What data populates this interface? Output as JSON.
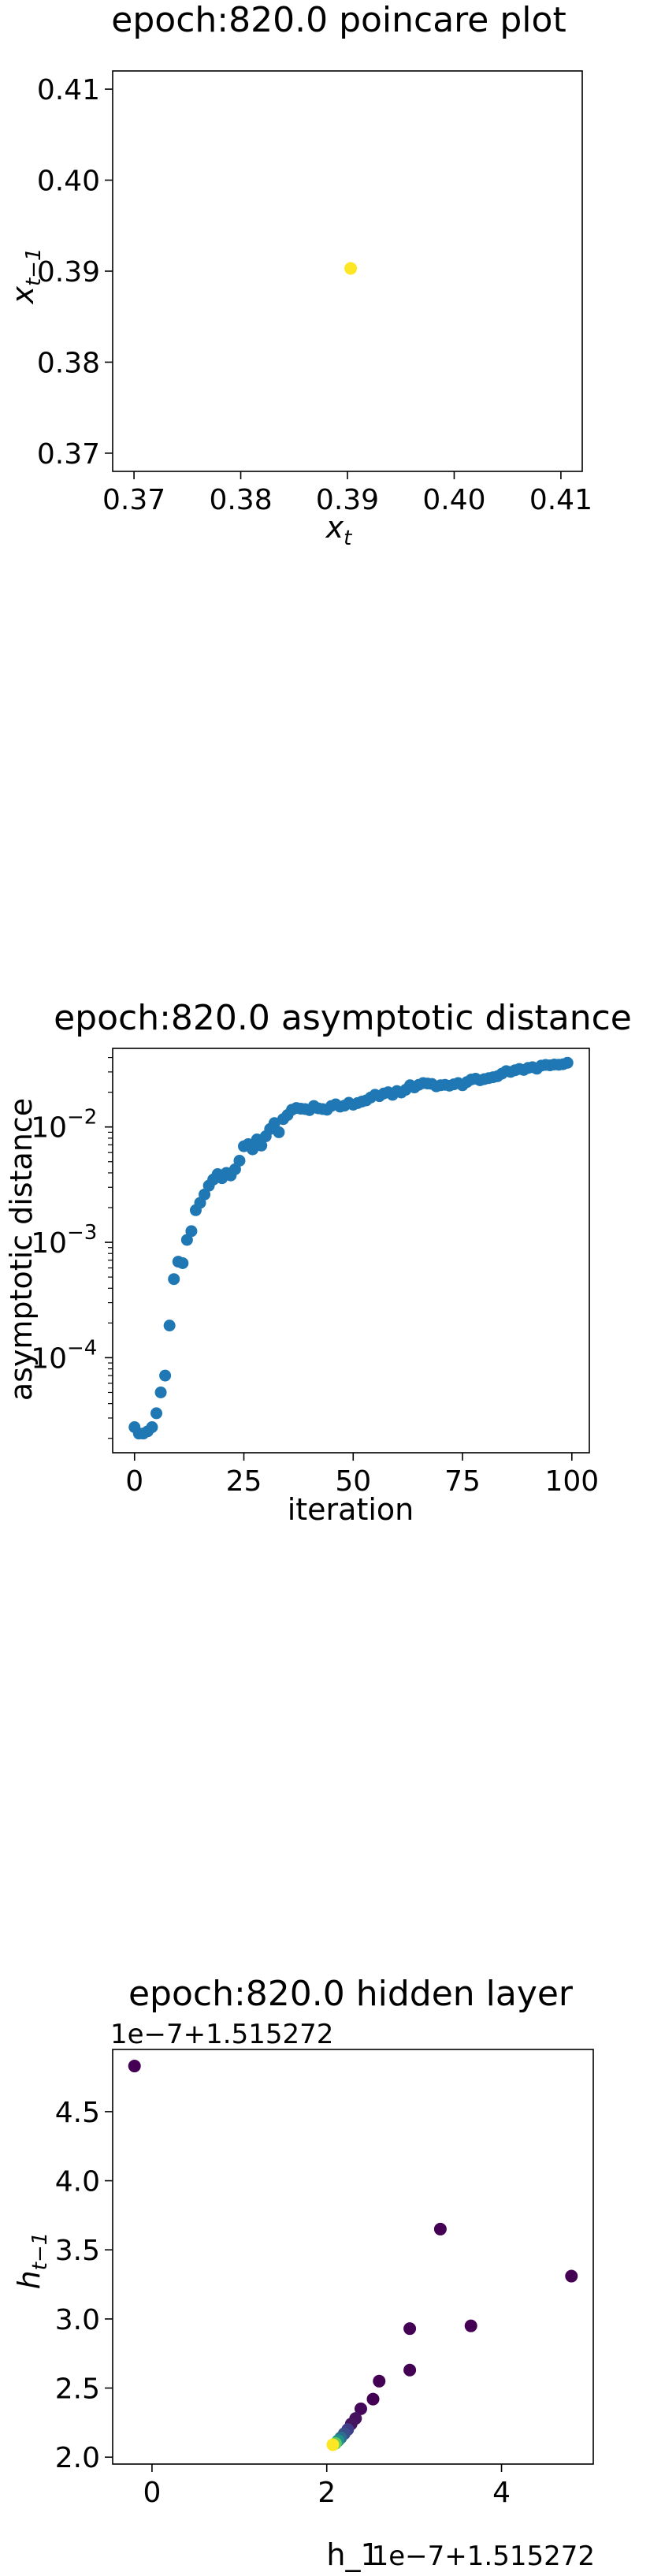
{
  "chart_data": [
    {
      "type": "scatter",
      "title": "epoch:820.0 poincare plot",
      "xlabel_base": "x",
      "xlabel_sub": "t",
      "ylabel_base": "x",
      "ylabel_sub": "t−1",
      "xlim": [
        0.368,
        0.412
      ],
      "ylim": [
        0.368,
        0.412
      ],
      "xticks": [
        0.37,
        0.38,
        0.39,
        0.4,
        0.41
      ],
      "xtick_labels": [
        "0.37",
        "0.38",
        "0.39",
        "0.40",
        "0.41"
      ],
      "yticks": [
        0.37,
        0.38,
        0.39,
        0.4,
        0.41
      ],
      "ytick_labels": [
        "0.37",
        "0.38",
        "0.39",
        "0.40",
        "0.41"
      ],
      "points": [
        {
          "x": 0.3903,
          "y": 0.3903,
          "color": "#fde725"
        }
      ]
    },
    {
      "type": "scatter",
      "title": "epoch:820.0 asymptotic distance",
      "xlabel": "iteration",
      "ylabel": "asymptotic distance",
      "yscale": "log",
      "xlim": [
        -5,
        104
      ],
      "ylim": [
        1.5e-05,
        0.048
      ],
      "xticks": [
        0,
        25,
        50,
        75,
        100
      ],
      "xtick_labels": [
        "0",
        "25",
        "50",
        "75",
        "100"
      ],
      "ytick_major": [
        0.0001,
        0.001,
        0.01
      ],
      "ytick_labels": [
        {
          "base": "10",
          "exp": "−4"
        },
        {
          "base": "10",
          "exp": "−3"
        },
        {
          "base": "10",
          "exp": "−2"
        }
      ],
      "color": "#1f77b4",
      "x": [
        0,
        1,
        2,
        3,
        4,
        5,
        6,
        7,
        8,
        9,
        10,
        11,
        12,
        13,
        14,
        15,
        16,
        17,
        18,
        19,
        20,
        21,
        22,
        23,
        24,
        25,
        26,
        27,
        28,
        29,
        30,
        31,
        32,
        33,
        34,
        35,
        36,
        37,
        38,
        39,
        40,
        41,
        42,
        43,
        44,
        45,
        46,
        47,
        48,
        49,
        50,
        51,
        52,
        53,
        54,
        55,
        56,
        57,
        58,
        59,
        60,
        61,
        62,
        63,
        64,
        65,
        66,
        67,
        68,
        69,
        70,
        71,
        72,
        73,
        74,
        75,
        76,
        77,
        78,
        79,
        80,
        81,
        82,
        83,
        84,
        85,
        86,
        87,
        88,
        89,
        90,
        91,
        92,
        93,
        94,
        95,
        96,
        97,
        98,
        99
      ],
      "y": [
        2.5e-05,
        2.2e-05,
        2.2e-05,
        2.3e-05,
        2.5e-05,
        3.3e-05,
        5e-05,
        7e-05,
        0.00019,
        0.00048,
        0.00068,
        0.00066,
        0.00105,
        0.00125,
        0.0019,
        0.0022,
        0.0026,
        0.0031,
        0.0035,
        0.0039,
        0.0036,
        0.004,
        0.0038,
        0.0043,
        0.0051,
        0.0068,
        0.0071,
        0.0064,
        0.0078,
        0.0069,
        0.0083,
        0.0096,
        0.0108,
        0.009,
        0.0117,
        0.0127,
        0.0141,
        0.0146,
        0.0144,
        0.0143,
        0.014,
        0.0152,
        0.0145,
        0.0143,
        0.0141,
        0.0152,
        0.0157,
        0.015,
        0.0153,
        0.0162,
        0.0156,
        0.0161,
        0.0166,
        0.017,
        0.018,
        0.019,
        0.0185,
        0.0195,
        0.02,
        0.019,
        0.0205,
        0.0199,
        0.021,
        0.023,
        0.022,
        0.0232,
        0.024,
        0.0238,
        0.0236,
        0.0225,
        0.023,
        0.0232,
        0.0228,
        0.0234,
        0.024,
        0.023,
        0.0245,
        0.0258,
        0.0262,
        0.0254,
        0.026,
        0.0265,
        0.027,
        0.0275,
        0.029,
        0.0305,
        0.03,
        0.031,
        0.0318,
        0.0312,
        0.0325,
        0.033,
        0.032,
        0.034,
        0.0345,
        0.0342,
        0.0348,
        0.0346,
        0.035,
        0.036
      ]
    },
    {
      "type": "scatter",
      "title": "epoch:820.0 hidden layer",
      "xlabel_text": "h_1",
      "ylabel_base": "h",
      "ylabel_sub": "t−1",
      "x_offset_text": "1e−7+1.515272",
      "y_offset_text": "1e−7+1.515272",
      "xlim": [
        -0.45,
        5.05
      ],
      "ylim": [
        1.95,
        4.95
      ],
      "xticks": [
        0,
        2,
        4
      ],
      "xtick_labels": [
        "0",
        "2",
        "4"
      ],
      "yticks": [
        2.0,
        2.5,
        3.0,
        3.5,
        4.0,
        4.5
      ],
      "ytick_labels": [
        "2.0",
        "2.5",
        "3.0",
        "3.5",
        "4.0",
        "4.5"
      ],
      "points": [
        {
          "x": -0.2,
          "y": 4.83,
          "color": "#440154"
        },
        {
          "x": 3.3,
          "y": 3.65,
          "color": "#440154"
        },
        {
          "x": 4.8,
          "y": 3.31,
          "color": "#440154"
        },
        {
          "x": 3.65,
          "y": 2.95,
          "color": "#440154"
        },
        {
          "x": 2.95,
          "y": 2.93,
          "color": "#440154"
        },
        {
          "x": 2.95,
          "y": 2.63,
          "color": "#440154"
        },
        {
          "x": 2.6,
          "y": 2.55,
          "color": "#440154"
        },
        {
          "x": 2.53,
          "y": 2.42,
          "color": "#440154"
        },
        {
          "x": 2.39,
          "y": 2.35,
          "color": "#45085b"
        },
        {
          "x": 2.33,
          "y": 2.28,
          "color": "#46145f"
        },
        {
          "x": 2.28,
          "y": 2.24,
          "color": "#46165f"
        },
        {
          "x": 2.24,
          "y": 2.2,
          "color": "#3f3d87"
        },
        {
          "x": 2.2,
          "y": 2.17,
          "color": "#3b4f8a"
        },
        {
          "x": 2.16,
          "y": 2.14,
          "color": "#2d6e8e"
        },
        {
          "x": 2.13,
          "y": 2.12,
          "color": "#21918c"
        },
        {
          "x": 2.1,
          "y": 2.1,
          "color": "#5ec962"
        },
        {
          "x": 2.07,
          "y": 2.09,
          "color": "#fde725"
        }
      ]
    }
  ]
}
